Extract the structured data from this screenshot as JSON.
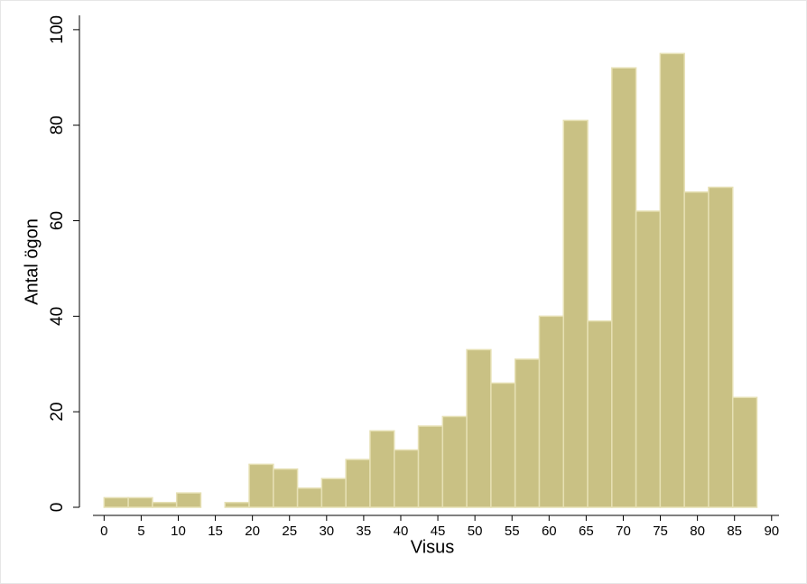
{
  "chart_data": {
    "type": "histogram",
    "xlabel": "Visus",
    "ylabel": "Antal ögon",
    "bins": [
      0,
      3.26,
      6.52,
      9.78,
      13.04,
      16.3,
      19.56,
      22.82,
      26.08,
      29.34,
      32.6,
      35.86,
      39.12,
      42.38,
      45.64,
      48.9,
      52.16,
      55.42,
      58.68,
      61.94,
      65.2,
      68.46,
      71.72,
      74.98,
      78.24,
      81.5,
      84.76,
      88.02
    ],
    "values": [
      2,
      2,
      1,
      3,
      0,
      1,
      9,
      8,
      4,
      6,
      10,
      16,
      12,
      17,
      19,
      33,
      26,
      31,
      40,
      81,
      39,
      92,
      62,
      95,
      66,
      67,
      23
    ],
    "color": "#c9c184",
    "xlim": [
      -1.5,
      91
    ],
    "xticks": [
      0,
      5,
      10,
      15,
      20,
      25,
      30,
      35,
      40,
      45,
      50,
      55,
      60,
      65,
      70,
      75,
      80,
      85,
      90
    ],
    "ylim": [
      0,
      103
    ],
    "yticks": [
      0,
      20,
      40,
      60,
      80,
      100
    ]
  }
}
